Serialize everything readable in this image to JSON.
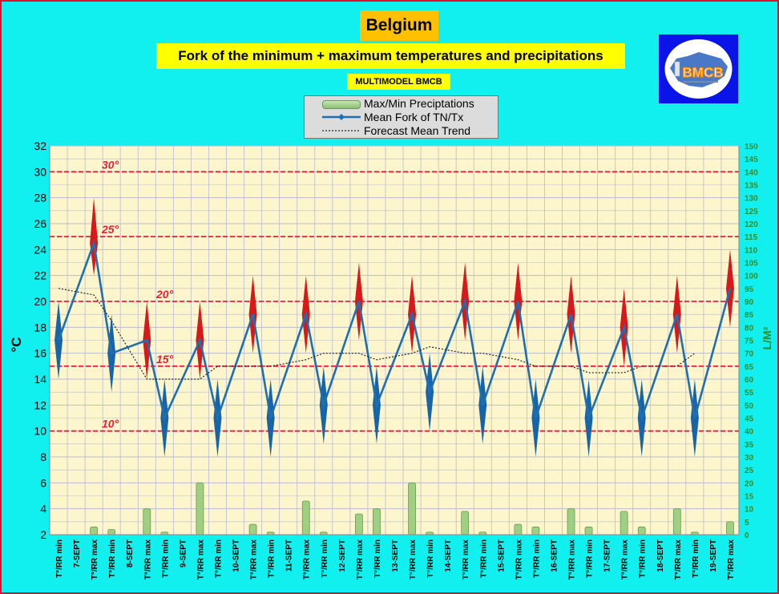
{
  "header": {
    "country": "Belgium",
    "subtitle": "Fork of the minimum + maximum temperatures and precipitations",
    "model": "MULTIMODEL BMCB"
  },
  "logo": {
    "text": "BMCB",
    "name": "bmcb-logo"
  },
  "legend": {
    "precip": "Max/Min Preciptations",
    "mean": "Mean Fork of TN/Tx",
    "trend": "Forecast Mean Trend"
  },
  "colors": {
    "background": "#11f0ee",
    "plot_bg": "#fdf6cc",
    "grid": "#b9bcd0",
    "mean_line": "#1f6fb0",
    "tmin_fork": "#1765a8",
    "tmax_fork": "#d7191c",
    "ref_line": "#e8203c",
    "precip_bar": "#9fcf83",
    "right_axis": "#2e8b2e"
  },
  "chart_data": {
    "type": "line",
    "ylabel": "°C",
    "y2label": "L/M²",
    "ylim": [
      2,
      32
    ],
    "y_ticks": [
      2,
      4,
      6,
      8,
      10,
      12,
      14,
      16,
      18,
      20,
      22,
      24,
      26,
      28,
      30,
      32
    ],
    "y2lim": [
      0,
      150
    ],
    "y2_ticks": [
      0,
      5,
      10,
      15,
      20,
      25,
      30,
      35,
      40,
      45,
      50,
      55,
      60,
      65,
      70,
      75,
      80,
      85,
      90,
      95,
      100,
      105,
      110,
      115,
      120,
      125,
      130,
      135,
      140,
      145,
      150
    ],
    "reference_lines": [
      {
        "value": 30,
        "label": "30°"
      },
      {
        "value": 25,
        "label": "25°"
      },
      {
        "value": 20,
        "label": "20°"
      },
      {
        "value": 15,
        "label": "15°"
      },
      {
        "value": 10,
        "label": "10°"
      }
    ],
    "x_labels": [
      "T°/RR min",
      "7-SEPT",
      "T°/RR max",
      "T°/RR min",
      "8-SEPT",
      "T°/RR max",
      "T°/RR min",
      "9-SEPT",
      "T°/RR max",
      "T°/RR min",
      "10-SEPT",
      "T°/RR max",
      "T°/RR min",
      "11-SEPT",
      "T°/RR max",
      "T°/RR min",
      "12-SEPT",
      "T°/RR max",
      "T°/RR min",
      "13-SEPT",
      "T°/RR max",
      "T°/RR min",
      "14-SEPT",
      "T°/RR max",
      "T°/RR min",
      "15-SEPT",
      "T°/RR max",
      "T°/RR min",
      "16-SEPT",
      "T°/RR max",
      "T°/RR min",
      "17-SEPT",
      "T°/RR max",
      "T°/RR min",
      "18-SEPT",
      "T°/RR max",
      "T°/RR min",
      "19-SEPT",
      "T°/RR max"
    ],
    "points": [
      {
        "kind": "min",
        "label": "T°/RR min",
        "mean": 17,
        "low": 14,
        "high": 20,
        "precip": 0
      },
      {
        "kind": "max",
        "label": "T°/RR max",
        "mean": 24.5,
        "low": 22,
        "high": 28,
        "precip": 3
      },
      {
        "kind": "min",
        "label": "T°/RR min",
        "mean": 16,
        "low": 13,
        "high": 19,
        "precip": 2
      },
      {
        "kind": "max",
        "label": "T°/RR max",
        "mean": 17,
        "low": 14,
        "high": 20,
        "precip": 10
      },
      {
        "kind": "min",
        "label": "T°/RR min",
        "mean": 11,
        "low": 8,
        "high": 14,
        "precip": 1
      },
      {
        "kind": "max",
        "label": "T°/RR max",
        "mean": 17,
        "low": 14,
        "high": 20,
        "precip": 20
      },
      {
        "kind": "min",
        "label": "T°/RR min",
        "mean": 11,
        "low": 8,
        "high": 14,
        "precip": 0
      },
      {
        "kind": "max",
        "label": "T°/RR max",
        "mean": 19,
        "low": 16,
        "high": 22,
        "precip": 4
      },
      {
        "kind": "min",
        "label": "T°/RR min",
        "mean": 11,
        "low": 8,
        "high": 14,
        "precip": 1
      },
      {
        "kind": "max",
        "label": "T°/RR max",
        "mean": 19,
        "low": 16,
        "high": 22,
        "precip": 13
      },
      {
        "kind": "min",
        "label": "T°/RR min",
        "mean": 12,
        "low": 9,
        "high": 15,
        "precip": 1
      },
      {
        "kind": "max",
        "label": "T°/RR max",
        "mean": 20,
        "low": 17,
        "high": 23,
        "precip": 8
      },
      {
        "kind": "min",
        "label": "T°/RR min",
        "mean": 12,
        "low": 9,
        "high": 15,
        "precip": 10
      },
      {
        "kind": "max",
        "label": "T°/RR max",
        "mean": 19,
        "low": 16,
        "high": 22,
        "precip": 20
      },
      {
        "kind": "min",
        "label": "T°/RR min",
        "mean": 13,
        "low": 10,
        "high": 16,
        "precip": 1
      },
      {
        "kind": "max",
        "label": "T°/RR max",
        "mean": 20,
        "low": 17,
        "high": 23,
        "precip": 9
      },
      {
        "kind": "min",
        "label": "T°/RR min",
        "mean": 12,
        "low": 9,
        "high": 15,
        "precip": 1
      },
      {
        "kind": "max",
        "label": "T°/RR max",
        "mean": 20,
        "low": 17,
        "high": 23,
        "precip": 4
      },
      {
        "kind": "min",
        "label": "T°/RR min",
        "mean": 11,
        "low": 8,
        "high": 14,
        "precip": 3
      },
      {
        "kind": "max",
        "label": "T°/RR max",
        "mean": 19,
        "low": 16,
        "high": 22,
        "precip": 10
      },
      {
        "kind": "min",
        "label": "T°/RR min",
        "mean": 11,
        "low": 8,
        "high": 14,
        "precip": 3
      },
      {
        "kind": "max",
        "label": "T°/RR max",
        "mean": 18,
        "low": 15,
        "high": 21,
        "precip": 9
      },
      {
        "kind": "min",
        "label": "T°/RR min",
        "mean": 11,
        "low": 8,
        "high": 14,
        "precip": 3
      },
      {
        "kind": "max",
        "label": "T°/RR max",
        "mean": 19,
        "low": 16,
        "high": 22,
        "precip": 10
      },
      {
        "kind": "min",
        "label": "T°/RR min",
        "mean": 11,
        "low": 8,
        "high": 14,
        "precip": 1
      },
      {
        "kind": "max",
        "label": "T°/RR max",
        "mean": 21,
        "low": 18,
        "high": 24,
        "precip": 5
      }
    ],
    "trend": [
      21,
      20.5,
      18.5,
      14,
      14,
      14,
      15,
      15,
      15,
      15.5,
      16,
      16,
      15.5,
      16,
      16.5,
      16,
      16,
      15.5,
      15,
      15,
      14.5,
      14.5,
      15,
      15,
      16,
      null
    ]
  }
}
